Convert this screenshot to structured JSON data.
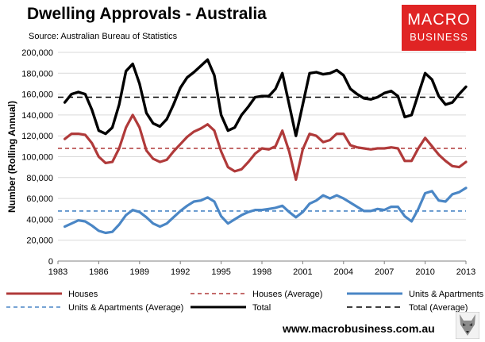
{
  "header": {
    "title": "Dwelling Approvals - Australia",
    "subtitle": "Source: Australian Bureau of Statistics"
  },
  "logo": {
    "line1": "MACRO",
    "line2": "BUSINESS"
  },
  "footer": {
    "url": "www.macrobusiness.com.au"
  },
  "colors": {
    "houses": "#b03a3a",
    "units": "#4a86c5",
    "total": "#000000",
    "logo": "#e02424"
  },
  "chart_data": {
    "type": "line",
    "title": "Dwelling Approvals - Australia",
    "xlabel": "",
    "ylabel": "Number (Rolling Annual)",
    "xlim": [
      1983,
      2013
    ],
    "ylim": [
      0,
      200000
    ],
    "xticks": [
      "1983",
      "1986",
      "1989",
      "1992",
      "1995",
      "1998",
      "2001",
      "2004",
      "2007",
      "2010",
      "2013"
    ],
    "yticks": [
      "0",
      "20,000",
      "40,000",
      "60,000",
      "80,000",
      "100,000",
      "120,000",
      "140,000",
      "160,000",
      "180,000",
      "200,000"
    ],
    "grid": "horizontal",
    "legend_position": "bottom",
    "series": [
      {
        "name": "Houses",
        "style": "solid",
        "color": "#b03a3a",
        "x": [
          1983.5,
          1984,
          1984.5,
          1985,
          1985.5,
          1986,
          1986.5,
          1987,
          1987.5,
          1988,
          1988.5,
          1989,
          1989.5,
          1990,
          1990.5,
          1991,
          1991.5,
          1992,
          1992.5,
          1993,
          1993.5,
          1994,
          1994.5,
          1995,
          1995.5,
          1996,
          1996.5,
          1997,
          1997.5,
          1998,
          1998.5,
          1999,
          1999.5,
          2000,
          2000.5,
          2001,
          2001.5,
          2002,
          2002.5,
          2003,
          2003.5,
          2004,
          2004.5,
          2005,
          2005.5,
          2006,
          2006.5,
          2007,
          2007.5,
          2008,
          2008.5,
          2009,
          2009.5,
          2010,
          2010.5,
          2011,
          2011.5,
          2012,
          2012.5,
          2013
        ],
        "values": [
          117000,
          122000,
          122000,
          121000,
          113000,
          100000,
          94000,
          95000,
          108000,
          128000,
          140000,
          128000,
          106000,
          98000,
          95000,
          97000,
          105000,
          112000,
          119000,
          124000,
          127000,
          131000,
          125000,
          105000,
          90000,
          86000,
          88000,
          95000,
          103000,
          108000,
          107000,
          110000,
          125000,
          105000,
          78000,
          107000,
          122000,
          120000,
          114000,
          116000,
          122000,
          122000,
          111000,
          109000,
          108000,
          107000,
          108000,
          108000,
          109000,
          108000,
          96000,
          96000,
          108000,
          118000,
          110000,
          102000,
          96000,
          91000,
          90000,
          95000
        ]
      },
      {
        "name": "Houses (Average)",
        "style": "dashed",
        "color": "#b03a3a",
        "x": [
          1983,
          2013
        ],
        "values": [
          108000,
          108000
        ]
      },
      {
        "name": "Units & Apartments",
        "style": "solid",
        "color": "#4a86c5",
        "x": [
          1983.5,
          1984,
          1984.5,
          1985,
          1985.5,
          1986,
          1986.5,
          1987,
          1987.5,
          1988,
          1988.5,
          1989,
          1989.5,
          1990,
          1990.5,
          1991,
          1991.5,
          1992,
          1992.5,
          1993,
          1993.5,
          1994,
          1994.5,
          1995,
          1995.5,
          1996,
          1996.5,
          1997,
          1997.5,
          1998,
          1998.5,
          1999,
          1999.5,
          2000,
          2000.5,
          2001,
          2001.5,
          2002,
          2002.5,
          2003,
          2003.5,
          2004,
          2004.5,
          2005,
          2005.5,
          2006,
          2006.5,
          2007,
          2007.5,
          2008,
          2008.5,
          2009,
          2009.5,
          2010,
          2010.5,
          2011,
          2011.5,
          2012,
          2012.5,
          2013
        ],
        "values": [
          33000,
          36000,
          39000,
          38000,
          34000,
          29000,
          27000,
          28000,
          35000,
          44000,
          49000,
          47000,
          42000,
          36000,
          33000,
          36000,
          42000,
          48000,
          53000,
          57000,
          58000,
          61000,
          57000,
          43000,
          36000,
          40000,
          44000,
          47000,
          49000,
          49000,
          50000,
          51000,
          53000,
          47000,
          42000,
          47000,
          55000,
          58000,
          63000,
          60000,
          63000,
          60000,
          56000,
          52000,
          48000,
          48000,
          50000,
          49000,
          52000,
          52000,
          43000,
          38000,
          50000,
          65000,
          67000,
          58000,
          57000,
          64000,
          66000,
          70000
        ]
      },
      {
        "name": "Units & Apartments (Average)",
        "style": "dashed",
        "color": "#4a86c5",
        "x": [
          1983,
          2013
        ],
        "values": [
          48000,
          48000
        ]
      },
      {
        "name": "Total",
        "style": "solid",
        "color": "#000000",
        "x": [
          1983.5,
          1984,
          1984.5,
          1985,
          1985.5,
          1986,
          1986.5,
          1987,
          1987.5,
          1988,
          1988.5,
          1989,
          1989.5,
          1990,
          1990.5,
          1991,
          1991.5,
          1992,
          1992.5,
          1993,
          1993.5,
          1994,
          1994.5,
          1995,
          1995.5,
          1996,
          1996.5,
          1997,
          1997.5,
          1998,
          1998.5,
          1999,
          1999.5,
          2000,
          2000.5,
          2001,
          2001.5,
          2002,
          2002.5,
          2003,
          2003.5,
          2004,
          2004.5,
          2005,
          2005.5,
          2006,
          2006.5,
          2007,
          2007.5,
          2008,
          2008.5,
          2009,
          2009.5,
          2010,
          2010.5,
          2011,
          2011.5,
          2012,
          2012.5,
          2013
        ],
        "values": [
          152000,
          160000,
          162000,
          160000,
          145000,
          125000,
          122000,
          128000,
          150000,
          182000,
          189000,
          170000,
          142000,
          132000,
          129000,
          136000,
          150000,
          166000,
          176000,
          181000,
          187000,
          193000,
          178000,
          140000,
          125000,
          128000,
          140000,
          148000,
          157000,
          158000,
          158000,
          165000,
          180000,
          150000,
          120000,
          150000,
          180000,
          181000,
          179000,
          180000,
          183000,
          178000,
          165000,
          160000,
          156000,
          155000,
          157000,
          161000,
          163000,
          158000,
          138000,
          140000,
          160000,
          180000,
          174000,
          158000,
          150000,
          152000,
          160000,
          167000
        ]
      },
      {
        "name": "Total (Average)",
        "style": "dashed",
        "color": "#000000",
        "x": [
          1983,
          2013
        ],
        "values": [
          157000,
          157000
        ]
      }
    ]
  }
}
